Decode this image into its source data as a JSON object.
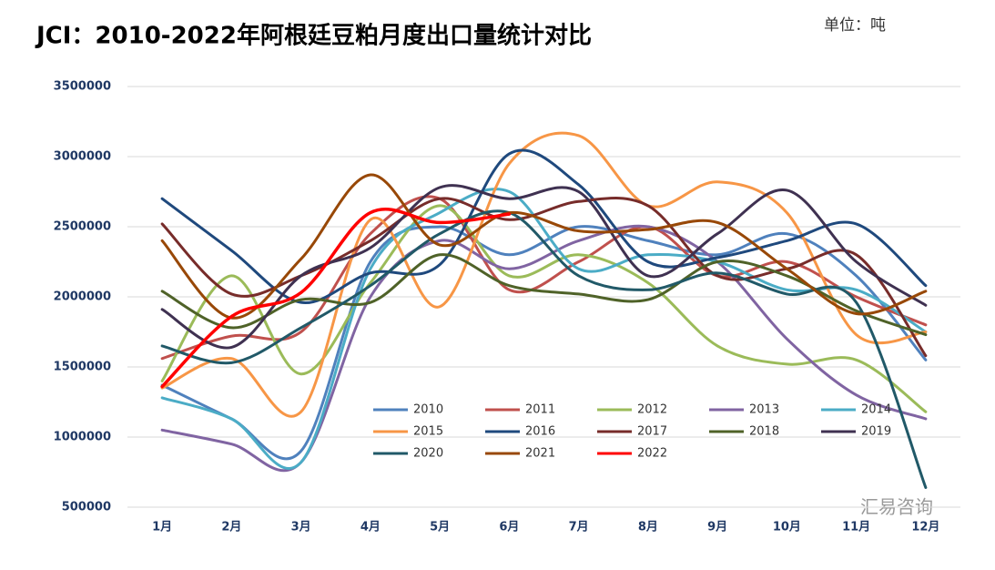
{
  "chart_data": {
    "type": "line",
    "title": "JCI：2010-2022年阿根廷豆粕月度出口量统计对比",
    "unit": "单位：吨",
    "watermark": "汇易咨询",
    "categories": [
      "1月",
      "2月",
      "3月",
      "4月",
      "5月",
      "6月",
      "7月",
      "8月",
      "9月",
      "10月",
      "11月",
      "12月"
    ],
    "ylim": [
      500000,
      3500000
    ],
    "yticks": [
      500000,
      1000000,
      1500000,
      2000000,
      2500000,
      3000000,
      3500000
    ],
    "grid": true,
    "series": [
      {
        "name": "2010",
        "color": "#4f81bd",
        "values": [
          1370000,
          1130000,
          900000,
          2250000,
          2500000,
          2300000,
          2500000,
          2400000,
          2300000,
          2450000,
          2150000,
          1550000
        ]
      },
      {
        "name": "2011",
        "color": "#c0504d",
        "values": [
          1560000,
          1720000,
          1750000,
          2450000,
          2700000,
          2050000,
          2250000,
          2500000,
          2150000,
          2250000,
          2000000,
          1800000
        ]
      },
      {
        "name": "2012",
        "color": "#9bbb59",
        "values": [
          1400000,
          2150000,
          1450000,
          2100000,
          2650000,
          2150000,
          2300000,
          2100000,
          1650000,
          1520000,
          1550000,
          1180000
        ]
      },
      {
        "name": "2013",
        "color": "#8064a2",
        "values": [
          1050000,
          950000,
          820000,
          2000000,
          2400000,
          2200000,
          2400000,
          2500000,
          2250000,
          1700000,
          1300000,
          1130000
        ]
      },
      {
        "name": "2014",
        "color": "#4bacc6",
        "values": [
          1280000,
          1130000,
          820000,
          2200000,
          2600000,
          2750000,
          2200000,
          2300000,
          2250000,
          2050000,
          2050000,
          1750000
        ]
      },
      {
        "name": "2015",
        "color": "#f79646",
        "values": [
          1350000,
          1560000,
          1180000,
          2550000,
          1930000,
          2950000,
          3150000,
          2650000,
          2820000,
          2600000,
          1730000,
          1750000
        ]
      },
      {
        "name": "2016",
        "color": "#1f497d",
        "values": [
          2700000,
          2330000,
          1960000,
          2170000,
          2230000,
          3020000,
          2800000,
          2250000,
          2280000,
          2400000,
          2520000,
          2080000
        ]
      },
      {
        "name": "2017",
        "color": "#772c2a",
        "values": [
          2520000,
          2020000,
          2150000,
          2400000,
          2700000,
          2550000,
          2680000,
          2650000,
          2150000,
          2200000,
          2300000,
          1580000
        ]
      },
      {
        "name": "2018",
        "color": "#4f6228",
        "values": [
          2040000,
          1780000,
          1980000,
          1960000,
          2300000,
          2080000,
          2020000,
          1980000,
          2250000,
          2150000,
          1900000,
          1730000
        ]
      },
      {
        "name": "2019",
        "color": "#3f3151",
        "values": [
          1910000,
          1640000,
          2150000,
          2350000,
          2780000,
          2700000,
          2750000,
          2150000,
          2450000,
          2760000,
          2250000,
          1940000
        ]
      },
      {
        "name": "2020",
        "color": "#215968",
        "values": [
          1650000,
          1530000,
          1780000,
          2080000,
          2450000,
          2600000,
          2150000,
          2050000,
          2170000,
          2020000,
          1960000,
          640000
        ]
      },
      {
        "name": "2021",
        "color": "#984807",
        "values": [
          2400000,
          1850000,
          2270000,
          2870000,
          2370000,
          2600000,
          2470000,
          2480000,
          2530000,
          2200000,
          1880000,
          2040000
        ]
      },
      {
        "name": "2022",
        "color": "#ff0000",
        "values": [
          1360000,
          1860000,
          2030000,
          2600000,
          2530000,
          2590000,
          null,
          null,
          null,
          null,
          null,
          null
        ]
      }
    ]
  }
}
